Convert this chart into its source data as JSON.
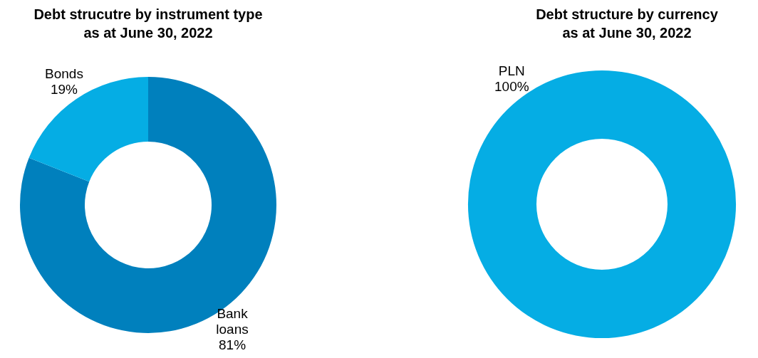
{
  "chart_data": [
    {
      "type": "donut",
      "title": "Debt strucutre by instrument type\nas at June 30, 2022",
      "categories": [
        "Bank loans",
        "Bonds"
      ],
      "values": [
        81,
        19
      ],
      "colors": [
        "#0080bd",
        "#05ade4"
      ],
      "value_labels": [
        "81%",
        "19%"
      ]
    },
    {
      "type": "donut",
      "title": "Debt structure by currency\nas at June 30, 2022",
      "categories": [
        "PLN"
      ],
      "values": [
        100
      ],
      "colors": [
        "#05ade4"
      ],
      "value_labels": [
        "100%"
      ]
    }
  ]
}
